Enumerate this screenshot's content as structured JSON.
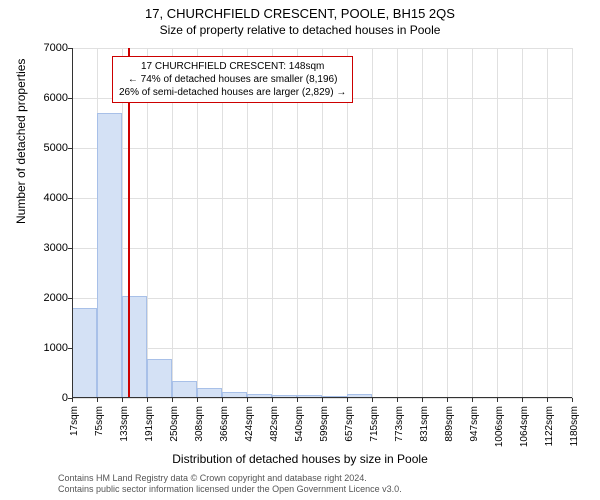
{
  "title": "17, CHURCHFIELD CRESCENT, POOLE, BH15 2QS",
  "subtitle": "Size of property relative to detached houses in Poole",
  "ylabel": "Number of detached properties",
  "xlabel": "Distribution of detached houses by size in Poole",
  "footer_line1": "Contains HM Land Registry data © Crown copyright and database right 2024.",
  "footer_line2": "Contains public sector information licensed under the Open Government Licence v3.0.",
  "annotation": {
    "line1": "17 CHURCHFIELD CRESCENT: 148sqm",
    "line2": "← 74% of detached houses are smaller (8,196)",
    "line3": "26% of semi-detached houses are larger (2,829) →"
  },
  "chart": {
    "type": "histogram",
    "ylim": [
      0,
      7000
    ],
    "ytick_step": 1000,
    "xlim": [
      17,
      1180
    ],
    "xticks": [
      17,
      75,
      133,
      191,
      250,
      308,
      366,
      424,
      482,
      540,
      599,
      657,
      715,
      773,
      831,
      889,
      947,
      1006,
      1064,
      1122,
      1180
    ],
    "xtick_suffix": "sqm",
    "marker_x": 148,
    "marker_color": "#cc0000",
    "bar_color": "#d4e1f5",
    "bar_border": "#a8c0e8",
    "grid_color": "#e0e0e0",
    "background_color": "#ffffff",
    "bars": [
      {
        "x0": 17,
        "x1": 75,
        "y": 1800
      },
      {
        "x0": 75,
        "x1": 133,
        "y": 5700
      },
      {
        "x0": 133,
        "x1": 191,
        "y": 2050
      },
      {
        "x0": 191,
        "x1": 250,
        "y": 780
      },
      {
        "x0": 250,
        "x1": 308,
        "y": 350
      },
      {
        "x0": 308,
        "x1": 366,
        "y": 200
      },
      {
        "x0": 366,
        "x1": 424,
        "y": 130
      },
      {
        "x0": 424,
        "x1": 482,
        "y": 90
      },
      {
        "x0": 482,
        "x1": 540,
        "y": 60
      },
      {
        "x0": 540,
        "x1": 599,
        "y": 60
      },
      {
        "x0": 599,
        "x1": 657,
        "y": 30
      },
      {
        "x0": 657,
        "x1": 715,
        "y": 80
      },
      {
        "x0": 715,
        "x1": 773,
        "y": 0
      },
      {
        "x0": 773,
        "x1": 831,
        "y": 0
      },
      {
        "x0": 831,
        "x1": 889,
        "y": 0
      },
      {
        "x0": 889,
        "x1": 947,
        "y": 0
      },
      {
        "x0": 947,
        "x1": 1006,
        "y": 0
      },
      {
        "x0": 1006,
        "x1": 1064,
        "y": 0
      },
      {
        "x0": 1064,
        "x1": 1122,
        "y": 0
      },
      {
        "x0": 1122,
        "x1": 1180,
        "y": 0
      }
    ],
    "title_fontsize": 13,
    "subtitle_fontsize": 12,
    "label_fontsize": 12,
    "tick_fontsize": 11,
    "annotation_fontsize": 10
  }
}
